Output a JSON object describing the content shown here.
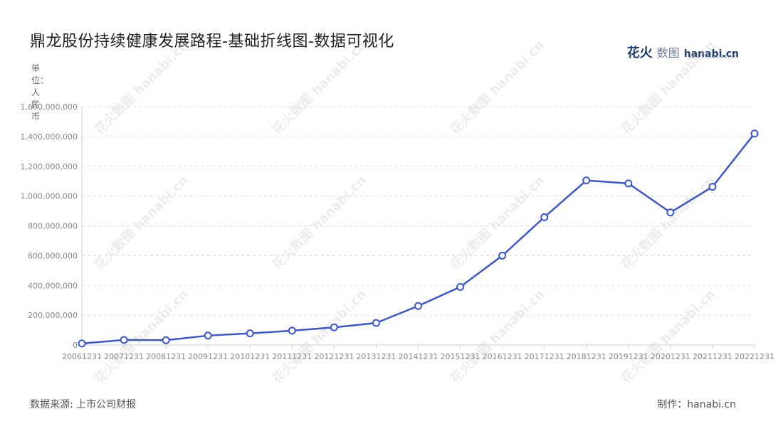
{
  "title": "鼎龙股份持续健康发展路程-基础折线图-数据可视化",
  "brand": {
    "name_cn_bold": "花火",
    "name_cn": "数图",
    "name_en": "hanabi.cn",
    "tagline": "DATA VISUALIZATION"
  },
  "unit_label": "单位：人民币",
  "source": "数据来源: 上市公司财报",
  "credit": "制作：hanabi.cn",
  "colors": {
    "line": "#3a56d4",
    "grid": "#dddddd",
    "axis": "#cccccc"
  },
  "chart_data": {
    "type": "line",
    "categories": [
      "20061231",
      "20071231",
      "20081231",
      "20091231",
      "20101231",
      "20111231",
      "20121231",
      "20131231",
      "20141231",
      "20151231",
      "20161231",
      "20171231",
      "20181231",
      "20191231",
      "20201231",
      "20211231",
      "20221231"
    ],
    "series": [
      {
        "values": [
          10000000,
          34000000,
          32000000,
          63000000,
          78000000,
          96000000,
          118000000,
          148000000,
          262000000,
          390000000,
          600000000,
          858000000,
          1105000000,
          1085000000,
          890000000,
          1062000000,
          1420000000
        ]
      }
    ],
    "ylim": [
      0,
      1600000000
    ],
    "yticks": [
      "0",
      "200,000,000",
      "400,000,000",
      "600,000,000",
      "800,000,000",
      "1,000,000,000",
      "1,200,000,000",
      "1,400,000,000",
      "1,600,000,000"
    ],
    "grid": "horizontal dashed",
    "legend": "none"
  }
}
